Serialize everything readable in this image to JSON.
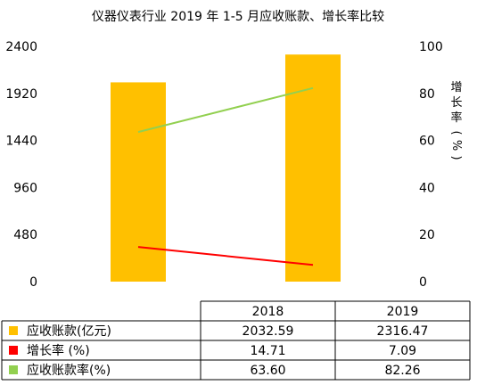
{
  "chart_data": {
    "type": "bar",
    "title": "仪器仪表行业 2019 年 1-5 月应收账款、增长率比较",
    "categories": [
      "2018",
      "2019"
    ],
    "series": [
      {
        "name": "应收账款(亿元)",
        "type": "bar",
        "axis": "left",
        "color": "#FFC000",
        "values": [
          2032.59,
          2316.47
        ],
        "value_labels": [
          "2032.59",
          "2316.47"
        ]
      },
      {
        "name": "增长率 (%)",
        "type": "line",
        "axis": "right",
        "color": "#FF0000",
        "values": [
          14.71,
          7.09
        ],
        "value_labels": [
          "14.71",
          "7.09"
        ]
      },
      {
        "name": "应收账款率(%)",
        "type": "line",
        "axis": "right",
        "color": "#92D050",
        "values": [
          63.6,
          82.26
        ],
        "value_labels": [
          "63.60",
          "82.26"
        ]
      }
    ],
    "y_left": {
      "ylim": [
        0,
        2400
      ],
      "ticks": [
        "0",
        "480",
        "960",
        "1440",
        "1920",
        "2400"
      ]
    },
    "y_right": {
      "ylim": [
        0,
        100
      ],
      "ticks": [
        "0",
        "20",
        "40",
        "60",
        "80",
        "100"
      ],
      "label": "增长率 (%)"
    },
    "grid": false,
    "legend": "data-table"
  }
}
